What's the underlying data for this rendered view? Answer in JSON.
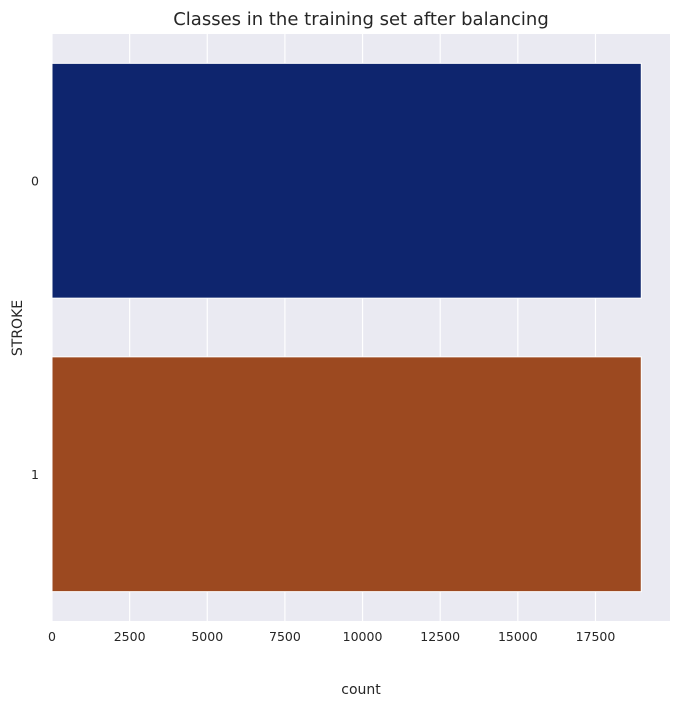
{
  "chart_data": {
    "type": "bar",
    "orientation": "horizontal",
    "title": "Classes in the training set after balancing",
    "xlabel": "count",
    "ylabel": "STROKE",
    "categories": [
      "0",
      "1"
    ],
    "values": [
      18975,
      18975
    ],
    "xlim": [
      0,
      19900
    ],
    "xticks": [
      0,
      2500,
      5000,
      7500,
      10000,
      12500,
      15000,
      17500
    ],
    "xtick_labels": [
      "0",
      "2500",
      "5000",
      "7500",
      "10000",
      "12500",
      "15000",
      "17500"
    ],
    "grid": true,
    "colors": {
      "plot_background": "#EAEAF2",
      "grid": "#FFFFFF",
      "bars": [
        "#0E256E",
        "#9C4920"
      ]
    }
  }
}
